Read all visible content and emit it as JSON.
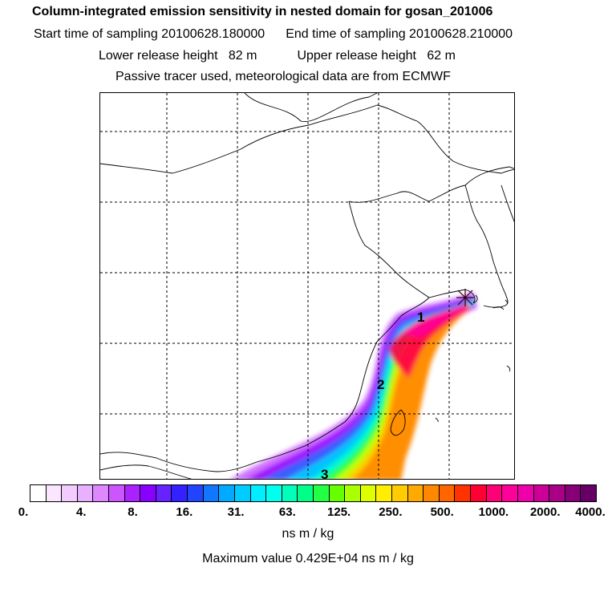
{
  "header": {
    "title": "Column-integrated emission sensitivity in nested domain for gosan_201006",
    "start_label": "Start time of sampling 20100628.180000",
    "end_label": "End time of sampling 20100628.210000",
    "lower_label": "Lower release height   82 m",
    "upper_label": "Upper release height   62 m",
    "tracer_line": "Passive tracer used, meteorological data are from ECMWF"
  },
  "map": {
    "labels": [
      "1",
      "2",
      "3"
    ],
    "plume_colors": [
      "#cc66ff",
      "#9900ff",
      "#3366ff",
      "#00ccff",
      "#00ffcc",
      "#33ff33",
      "#ccff00",
      "#ffcc00",
      "#ff8800",
      "#ff0044",
      "#ff0099"
    ]
  },
  "colorbar": {
    "colors": [
      "#ffffff",
      "#fbe6ff",
      "#f3ccff",
      "#e9b0ff",
      "#dd88ff",
      "#cc55ff",
      "#aa22ff",
      "#8800ff",
      "#6622ff",
      "#3322ff",
      "#2244ff",
      "#1177ff",
      "#00aaff",
      "#00ccff",
      "#00eeff",
      "#00ffee",
      "#00ffbb",
      "#00ff88",
      "#22ff44",
      "#66ff00",
      "#aaff00",
      "#ddff00",
      "#ffee00",
      "#ffcc00",
      "#ffaa00",
      "#ff8800",
      "#ff6600",
      "#ff3300",
      "#ff0033",
      "#ff0077",
      "#ff0099",
      "#ee00aa",
      "#cc0099",
      "#aa0088",
      "#880077",
      "#660066"
    ],
    "tick_labels": [
      "0.",
      "4.",
      "8.",
      "16.",
      "31.",
      "63.",
      "125.",
      "250.",
      "500.",
      "1000.",
      "2000.",
      "4000."
    ],
    "unit": "ns m / kg"
  },
  "max_value_text": "Maximum value  0.429E+04 ns m / kg"
}
